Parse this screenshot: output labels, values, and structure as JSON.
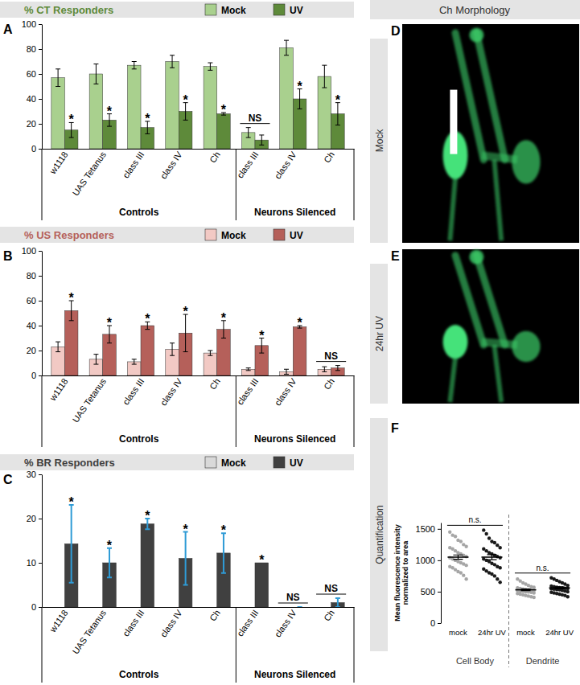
{
  "chart_data": [
    {
      "type": "bar",
      "panel": "A",
      "title": "% CT Responders",
      "categories": [
        "w1118",
        "UAS Tetanus",
        "class III",
        "class IV",
        "Ch",
        "class III",
        "class IV",
        "Ch"
      ],
      "category_groups": [
        "Controls",
        "Controls",
        "Controls",
        "Controls",
        "Controls",
        "Neurons Silenced",
        "Neurons Silenced",
        "Neurons Silenced"
      ],
      "series": [
        {
          "name": "Mock",
          "color": "#a9d08e",
          "values": [
            57,
            60,
            67,
            70,
            66,
            13,
            81,
            58
          ],
          "errors": [
            7,
            8,
            3,
            5,
            3,
            4,
            6,
            9
          ]
        },
        {
          "name": "UV",
          "color": "#5e8a3a",
          "values": [
            15,
            23,
            17,
            30,
            28,
            7,
            40,
            28
          ],
          "errors": [
            6,
            5,
            5,
            7,
            1,
            4,
            8,
            9
          ]
        }
      ],
      "ylim": [
        0,
        100
      ],
      "yticks": [
        0,
        20,
        40,
        60,
        80,
        100
      ],
      "annotations": [
        {
          "text": "*",
          "categories": [
            0
          ],
          "series": [
            1
          ]
        },
        {
          "text": "*",
          "categories": [
            1
          ],
          "series": [
            1
          ]
        },
        {
          "text": "*",
          "categories": [
            2
          ],
          "series": [
            1
          ]
        },
        {
          "text": "*",
          "categories": [
            3
          ],
          "series": [
            1
          ]
        },
        {
          "text": "*",
          "categories": [
            4
          ],
          "series": [
            1
          ]
        },
        {
          "text": "NS",
          "categories": [
            5
          ],
          "series": [
            0,
            1
          ]
        },
        {
          "text": "*",
          "categories": [
            6
          ],
          "series": [
            1
          ]
        },
        {
          "text": "*",
          "categories": [
            7
          ],
          "series": [
            1
          ]
        }
      ]
    },
    {
      "type": "bar",
      "panel": "B",
      "title": "% US Responders",
      "categories": [
        "w1118",
        "UAS Tetanus",
        "class III",
        "class IV",
        "Ch",
        "class III",
        "class IV",
        "Ch"
      ],
      "category_groups": [
        "Controls",
        "Controls",
        "Controls",
        "Controls",
        "Controls",
        "Neurons Silenced",
        "Neurons Silenced",
        "Neurons Silenced"
      ],
      "series": [
        {
          "name": "Mock",
          "color": "#f2c9c4",
          "values": [
            23,
            13,
            11,
            21,
            18,
            5,
            3,
            5
          ],
          "errors": [
            4,
            4,
            2,
            5,
            2,
            1,
            2,
            2
          ]
        },
        {
          "name": "UV",
          "color": "#b5605a",
          "values": [
            52,
            33,
            40,
            34,
            37,
            24,
            39,
            6
          ],
          "errors": [
            8,
            7,
            3,
            15,
            7,
            6,
            1,
            2
          ]
        }
      ],
      "ylim": [
        0,
        100
      ],
      "yticks": [
        0,
        20,
        40,
        60,
        80,
        100
      ],
      "annotations": [
        {
          "text": "*",
          "categories": [
            0
          ],
          "series": [
            1
          ]
        },
        {
          "text": "*",
          "categories": [
            1
          ],
          "series": [
            1
          ]
        },
        {
          "text": "*",
          "categories": [
            2
          ],
          "series": [
            1
          ]
        },
        {
          "text": "*",
          "categories": [
            3
          ],
          "series": [
            1
          ]
        },
        {
          "text": "*",
          "categories": [
            4
          ],
          "series": [
            1
          ]
        },
        {
          "text": "*",
          "categories": [
            5
          ],
          "series": [
            1
          ]
        },
        {
          "text": "*",
          "categories": [
            6
          ],
          "series": [
            1
          ]
        },
        {
          "text": "NS",
          "categories": [
            7
          ],
          "series": [
            0,
            1
          ]
        }
      ]
    },
    {
      "type": "bar",
      "panel": "C",
      "title": "% BR Responders",
      "categories": [
        "w1118",
        "UAS Tetanus",
        "class III",
        "class IV",
        "Ch",
        "class III",
        "class IV",
        "Ch"
      ],
      "category_groups": [
        "Controls",
        "Controls",
        "Controls",
        "Controls",
        "Controls",
        "Neurons Silenced",
        "Neurons Silenced",
        "Neurons Silenced"
      ],
      "series": [
        {
          "name": "Mock",
          "color": "#d9d9d9",
          "values": [
            0,
            0,
            0,
            0,
            0,
            0,
            0,
            0
          ]
        },
        {
          "name": "UV",
          "color": "#404040",
          "values": [
            14.3,
            10,
            18.8,
            11,
            12.2,
            10,
            0,
            1
          ],
          "errors": [
            8.8,
            3.3,
            1.2,
            6,
            4.5,
            null,
            0,
            1
          ]
        }
      ],
      "ylim": [
        0,
        30
      ],
      "yticks": [
        0,
        10,
        20,
        30
      ],
      "annotations": [
        {
          "text": "*",
          "categories": [
            0
          ],
          "series": [
            1
          ]
        },
        {
          "text": "*",
          "categories": [
            1
          ],
          "series": [
            1
          ]
        },
        {
          "text": "*",
          "categories": [
            2
          ],
          "series": [
            1
          ]
        },
        {
          "text": "*",
          "categories": [
            3
          ],
          "series": [
            1
          ]
        },
        {
          "text": "*",
          "categories": [
            4
          ],
          "series": [
            1
          ]
        },
        {
          "text": "*",
          "categories": [
            5
          ],
          "series": [
            1
          ]
        },
        {
          "text": "NS",
          "categories": [
            6
          ],
          "series": [
            0,
            1
          ]
        },
        {
          "text": "NS",
          "categories": [
            7
          ],
          "series": [
            0,
            1
          ]
        }
      ]
    },
    {
      "type": "scatter",
      "panel": "F",
      "title": "Quantification",
      "ylabel": "Mean fluorescence intensity normalized to area",
      "categories": [
        "mock",
        "24hr UV",
        "mock",
        "24hr UV"
      ],
      "category_groups": [
        "Cell Body",
        "Cell Body",
        "Dendrite",
        "Dendrite"
      ],
      "colors": [
        "#a6a6a6",
        "#1a1a1a",
        "#a6a6a6",
        "#1a1a1a"
      ],
      "points": [
        [
          1450,
          1400,
          1380,
          1320,
          1300,
          1250,
          1220,
          1200,
          1180,
          1150,
          1120,
          1100,
          1080,
          1060,
          1040,
          1020,
          1000,
          980,
          960,
          940,
          920,
          900,
          880,
          850,
          820,
          800,
          760,
          700
        ],
        [
          1480,
          1420,
          1350,
          1300,
          1280,
          1240,
          1200,
          1180,
          1150,
          1120,
          1100,
          1080,
          1060,
          1040,
          1020,
          1000,
          980,
          950,
          930,
          900,
          880,
          860,
          830,
          800,
          780,
          750,
          700,
          650
        ],
        [
          700,
          670,
          640,
          620,
          600,
          580,
          570,
          560,
          550,
          540,
          535,
          530,
          525,
          520,
          515,
          510,
          505,
          500,
          495,
          490,
          480,
          470,
          460,
          450,
          440,
          430,
          420,
          410
        ],
        [
          720,
          700,
          680,
          660,
          640,
          620,
          600,
          590,
          580,
          570,
          565,
          560,
          555,
          550,
          545,
          540,
          535,
          530,
          520,
          510,
          500,
          490,
          480,
          470,
          460,
          450,
          440,
          420
        ]
      ],
      "means": [
        1050,
        1050,
        530,
        560
      ],
      "errors": [
        35,
        40,
        13,
        14
      ],
      "ylim": [
        0,
        1600
      ],
      "yticks": [
        0,
        500,
        1000,
        1500
      ],
      "annotations": [
        {
          "text": "n.s.",
          "categories": [
            0,
            1
          ]
        },
        {
          "text": "n.s.",
          "categories": [
            2,
            3
          ]
        }
      ]
    }
  ],
  "images": {
    "title": "Ch Morphology",
    "panels": [
      {
        "panel": "D",
        "label": "Mock"
      },
      {
        "panel": "E",
        "label": "24hr UV"
      }
    ]
  }
}
